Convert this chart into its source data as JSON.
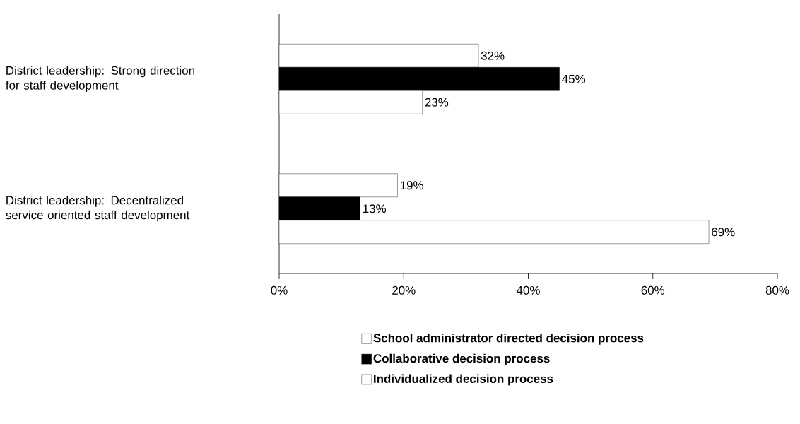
{
  "chart_data": {
    "type": "bar",
    "orientation": "horizontal",
    "categories": [
      "District leadership:  Strong direction for staff development",
      "District leadership: Decentralized service oriented staff development"
    ],
    "series": [
      {
        "name": "School administrator directed decision process",
        "color": "#ffffff",
        "values": [
          32,
          19
        ],
        "value_labels": [
          "32%",
          "19%"
        ]
      },
      {
        "name": "Collaborative decision process",
        "color": "#000000",
        "values": [
          45,
          13
        ],
        "value_labels": [
          "45%",
          "13%"
        ]
      },
      {
        "name": "Individualized decision process",
        "color": "#ffffff",
        "values": [
          23,
          69
        ],
        "value_labels": [
          "23%",
          "69%"
        ]
      }
    ],
    "xlim": [
      0,
      80
    ],
    "xticks": [
      {
        "value": 0,
        "label": "0%"
      },
      {
        "value": 20,
        "label": "20%"
      },
      {
        "value": 40,
        "label": "40%"
      },
      {
        "value": 60,
        "label": "60%"
      },
      {
        "value": 80,
        "label": "80%"
      }
    ],
    "grid": false,
    "legend": "bottom"
  }
}
